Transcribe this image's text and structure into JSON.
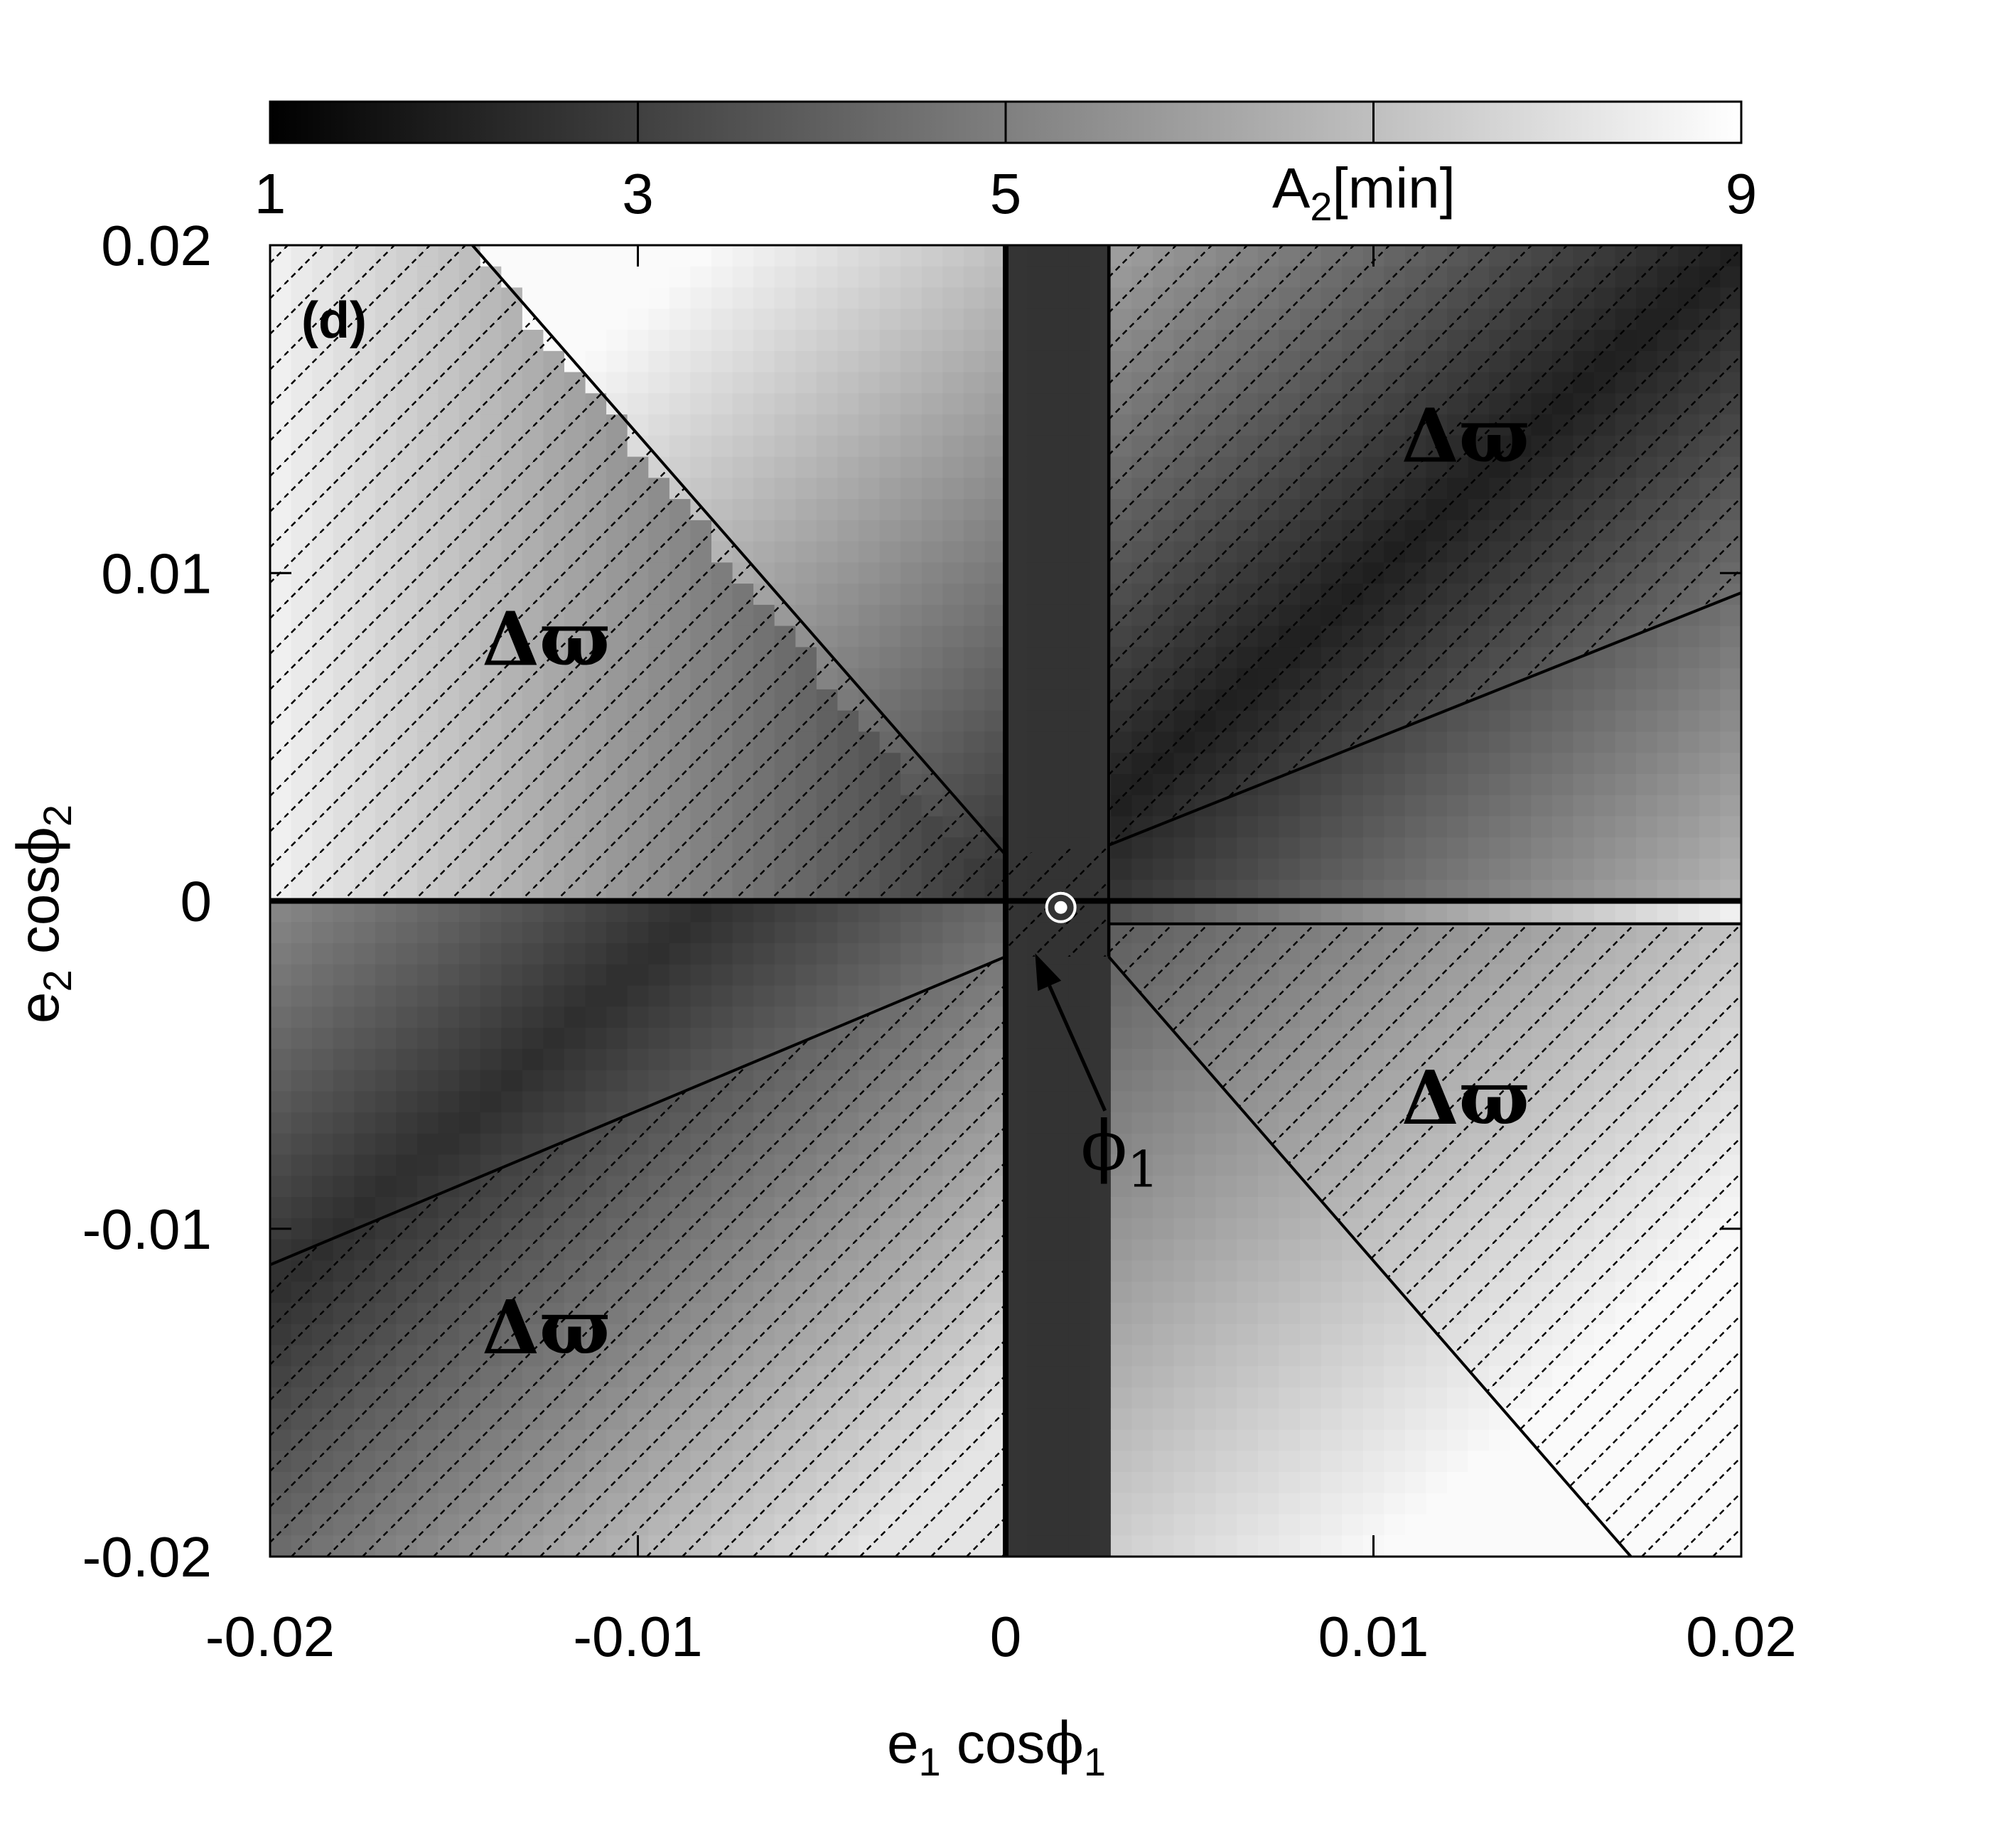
{
  "chart_data": {
    "type": "heatmap",
    "panel_label": "(d)",
    "xlim": [
      -0.02,
      0.02
    ],
    "ylim": [
      -0.02,
      0.02
    ],
    "x_ticks": [
      -0.02,
      -0.01,
      0,
      0.01,
      0.02
    ],
    "y_ticks": [
      -0.02,
      -0.01,
      0,
      0.01,
      0.02
    ],
    "x_tick_labels": [
      "-0.02",
      "-0.01",
      "0",
      "0.01",
      "0.02"
    ],
    "y_tick_labels": [
      "-0.02",
      "-0.01",
      "0",
      "0.01",
      "0.02"
    ],
    "xlabel": {
      "base": "e",
      "sub": "1",
      "mid": " cos",
      "sym": "ϕ",
      "sub2": "1"
    },
    "ylabel": {
      "base": "e",
      "sub": "2",
      "mid": " cos",
      "sym": "ϕ",
      "sub2": "2"
    },
    "colorbar": {
      "range": [
        1,
        9
      ],
      "ticks": [
        1,
        3,
        5,
        9
      ],
      "tick_labels": [
        "1",
        "3",
        "5",
        "9"
      ],
      "label": {
        "base": "A",
        "sub": "2",
        "rest": "[min]"
      },
      "colormap": "gray",
      "low_color": "#000000",
      "high_color": "#ffffff"
    },
    "region_labels": [
      {
        "text": "Δϖ",
        "x": -0.0125,
        "y": 0.0072
      },
      {
        "text": "Δϖ",
        "x": 0.0125,
        "y": 0.0134
      },
      {
        "text": "Δϖ",
        "x": 0.0125,
        "y": -0.0068
      },
      {
        "text": "Δϖ",
        "x": -0.0125,
        "y": -0.0138
      }
    ],
    "boundary_lines": [
      {
        "from": [
          -0.0145,
          0.02
        ],
        "to": [
          0.0,
          0.0014
        ]
      },
      {
        "from": [
          0.0028,
          -0.0017
        ],
        "to": [
          0.017,
          -0.02
        ]
      },
      {
        "from": [
          0.0028,
          0.0017
        ],
        "to": [
          0.02,
          0.0094
        ]
      },
      {
        "from": [
          -0.02,
          -0.0111
        ],
        "to": [
          0.0,
          -0.0017
        ]
      },
      {
        "from": [
          0.0028,
          0.02
        ],
        "to": [
          0.0028,
          -0.0017
        ]
      },
      {
        "from": [
          0.0028,
          -0.0007
        ],
        "to": [
          0.02,
          -0.0007
        ]
      }
    ],
    "thick_lines": [
      {
        "from": [
          0.0,
          0.02
        ],
        "to": [
          0.0,
          -0.02
        ]
      },
      {
        "from": [
          -0.02,
          0.0
        ],
        "to": [
          0.02,
          0.0
        ]
      }
    ],
    "marker": {
      "x": 0.0015,
      "y": -0.0002
    },
    "annotation": {
      "text_sym": "ϕ",
      "text_sub": "1",
      "arrow_tail": [
        0.0027,
        -0.0064
      ],
      "arrow_head": [
        0.0008,
        -0.0016
      ],
      "text_pos": [
        0.0032,
        -0.0082
      ]
    }
  }
}
